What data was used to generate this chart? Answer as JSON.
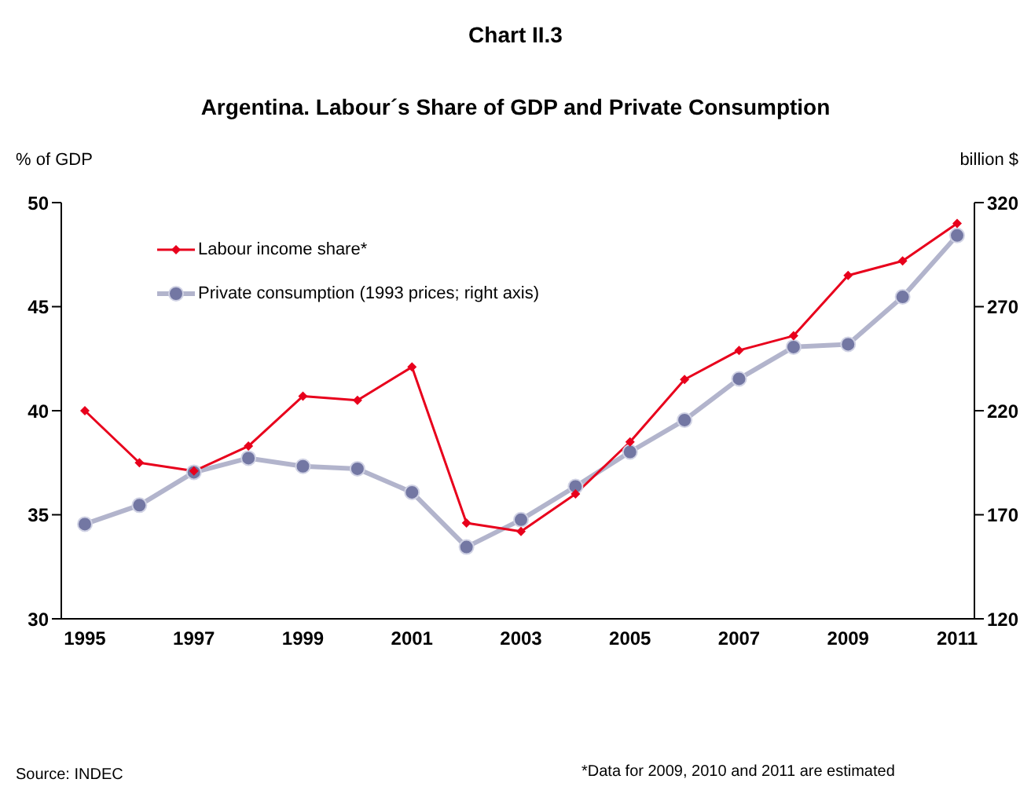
{
  "chart_data": {
    "type": "line",
    "title": "Chart II.3",
    "subtitle": "Argentina. Labour´s Share of GDP and Private Consumption",
    "ylabel": "% of GDP",
    "y2label": "billion $",
    "categories": [
      "1995",
      null,
      "1997",
      null,
      "1999",
      null,
      "2001",
      null,
      "2003",
      null,
      "2005",
      null,
      "2007",
      null,
      "2009",
      null,
      "2011"
    ],
    "series": [
      {
        "name": "Labour income share*",
        "color": "#e8001c",
        "marker": "diamond",
        "values": [
          40.0,
          37.5,
          37.1,
          38.3,
          40.7,
          40.5,
          42.1,
          34.6,
          34.2,
          36.0,
          38.5,
          41.5,
          42.9,
          43.6,
          46.5,
          47.2,
          49.0
        ]
      },
      {
        "name": "Private consumption (1993 prices; right axis)",
        "color": "#7377a3",
        "marker": "circle",
        "axis": "y2",
        "values": [
          165.5,
          174.6,
          190.4,
          197.2,
          193.3,
          192.1,
          180.8,
          154.5,
          167.6,
          183.6,
          200.2,
          215.5,
          235.3,
          250.6,
          251.9,
          274.7,
          304.2
        ]
      }
    ],
    "ylim": [
      30,
      50
    ],
    "yticks": [
      30,
      35,
      40,
      45,
      50
    ],
    "y2lim": [
      120,
      320
    ],
    "y2ticks": [
      120,
      170,
      220,
      270,
      320
    ],
    "grid": false,
    "legend": "top left",
    "line_style": "solid",
    "annotations": [
      "Source: INDEC",
      "*Data for 2009, 2010 and 2011 are estimated"
    ]
  }
}
